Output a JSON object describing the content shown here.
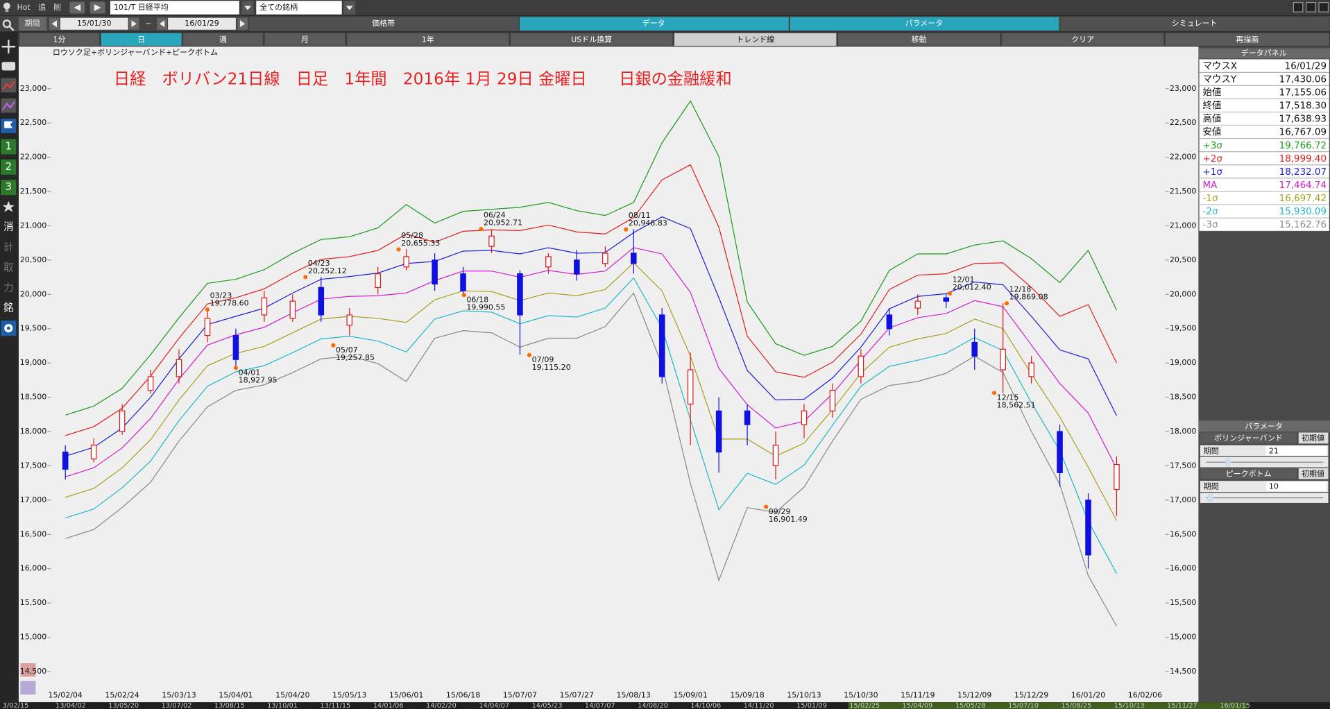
{
  "toolbar": {
    "hot": "Hot",
    "add": "追",
    "delete": "削",
    "symbol": "101/T 日経平均",
    "universe": "全ての銘柄",
    "period_label": "期間",
    "from": "15/01/30",
    "tilde": "~",
    "to": "16/01/29"
  },
  "tabs": [
    "価格帯",
    "データ",
    "パラメータ",
    "シミュレート"
  ],
  "buttons": [
    "1分",
    "日",
    "週",
    "月",
    "1年",
    "USドル換算",
    "トレンド線",
    "移動",
    "クリア",
    "再描画"
  ],
  "sidebar": [
    "1",
    "2",
    "3",
    "消",
    "計",
    "取",
    "力",
    "銘"
  ],
  "chart_data": {
    "type": "candlestick",
    "title": "日経　ボリバン21日線　日足　1年間　2016年 1月 29日 金曜日　　日銀の金融緩和",
    "subtitle": "ロウソク足+ボリンジャーバンド+ピークボトム",
    "categories": [
      "15/02/04",
      null,
      "15/02/24",
      null,
      "15/03/13",
      null,
      "15/04/01",
      null,
      "15/04/20",
      null,
      "15/05/13",
      null,
      "15/06/01",
      null,
      "15/06/18",
      null,
      "15/07/07",
      null,
      "15/07/27",
      null,
      "15/08/13",
      null,
      "15/09/01",
      null,
      "15/09/18",
      null,
      "15/10/13",
      null,
      "15/10/30",
      null,
      "15/11/19",
      null,
      "15/12/09",
      null,
      "15/12/29",
      null,
      "16/01/20",
      null,
      "16/02/06"
    ],
    "open": [
      17700,
      17600,
      18000,
      18600,
      18800,
      19400,
      19400,
      19700,
      19650,
      20100,
      19550,
      20100,
      20400,
      20500,
      20300,
      20700,
      20300,
      20400,
      20500,
      20450,
      20600,
      19700,
      18400,
      18300,
      18300,
      17500,
      18100,
      18300,
      18800,
      19700,
      19800,
      19950,
      19300,
      18900,
      18800,
      18000,
      17000,
      17155.06,
      null
    ],
    "high": [
      17800,
      17900,
      18400,
      18900,
      19200,
      19780,
      19500,
      20050,
      20000,
      20250,
      19800,
      20400,
      20660,
      20600,
      20400,
      20950,
      20350,
      20600,
      20650,
      20700,
      20950,
      19800,
      19150,
      18500,
      18400,
      18000,
      18400,
      18700,
      19200,
      19800,
      20000,
      20010,
      19500,
      19870,
      19100,
      18100,
      17100,
      17638.93,
      null
    ],
    "low": [
      17300,
      17550,
      17950,
      18550,
      18700,
      19300,
      18930,
      19600,
      19600,
      19600,
      19400,
      20000,
      20350,
      20050,
      19990,
      20600,
      19120,
      20300,
      20200,
      20400,
      20300,
      18700,
      17800,
      17400,
      17800,
      17300,
      17900,
      18200,
      18700,
      19400,
      19700,
      19800,
      18900,
      18560,
      18700,
      17200,
      16000,
      16767.09,
      null
    ],
    "close": [
      17450,
      17800,
      18300,
      18800,
      19050,
      19650,
      19050,
      19950,
      19900,
      19700,
      19700,
      20300,
      20550,
      20150,
      20050,
      20850,
      19700,
      20550,
      20300,
      20600,
      20450,
      18800,
      18900,
      17700,
      18100,
      17800,
      18300,
      18600,
      19100,
      19500,
      19900,
      19900,
      19100,
      19200,
      19000,
      17400,
      16200,
      17518.3,
      null
    ],
    "up_color": "#e01818",
    "down_color": "#1010e0",
    "series": [
      {
        "name": "+3σ",
        "color": "#1c9a1c",
        "values": [
          18240,
          18370,
          18630,
          19120,
          19660,
          20160,
          20220,
          20360,
          20600,
          20800,
          20840,
          20970,
          21310,
          21040,
          21210,
          21240,
          21270,
          21340,
          21220,
          21150,
          21340,
          22210,
          22820,
          22010,
          19890,
          19280,
          19110,
          19240,
          19610,
          20350,
          20590,
          20590,
          20720,
          20780,
          20520,
          20170,
          20640,
          19770,
          null
        ]
      },
      {
        "name": "+2σ",
        "color": "#e02020",
        "values": [
          17940,
          18070,
          18340,
          18810,
          19360,
          19860,
          19950,
          20080,
          20310,
          20510,
          20550,
          20640,
          20880,
          20760,
          20920,
          20940,
          20930,
          21010,
          20910,
          20880,
          21120,
          21670,
          21890,
          20980,
          19390,
          18870,
          18790,
          19010,
          19420,
          20070,
          20280,
          20300,
          20450,
          20460,
          20100,
          19680,
          19850,
          19000,
          null
        ]
      },
      {
        "name": "+1σ",
        "color": "#2020d0",
        "values": [
          17640,
          17770,
          18050,
          18500,
          19060,
          19560,
          19680,
          19800,
          20020,
          20220,
          20260,
          20310,
          20450,
          20480,
          20630,
          20640,
          20590,
          20680,
          20600,
          20610,
          20900,
          21130,
          20960,
          19950,
          18890,
          18460,
          18470,
          18780,
          19230,
          19790,
          19970,
          20010,
          20180,
          20140,
          19680,
          19190,
          19060,
          18230,
          null
        ]
      },
      {
        "name": "MA",
        "color": "#d020d0",
        "values": [
          17340,
          17470,
          17760,
          18190,
          18760,
          19260,
          19410,
          19520,
          19730,
          19930,
          19970,
          19980,
          20020,
          20200,
          20340,
          20340,
          20250,
          20350,
          20290,
          20340,
          20680,
          20590,
          20030,
          18920,
          18390,
          18050,
          18150,
          18550,
          19040,
          19510,
          19660,
          19720,
          19910,
          19820,
          19260,
          18700,
          18270,
          17460,
          null
        ]
      },
      {
        "name": "-1σ",
        "color": "#a8a020",
        "values": [
          17040,
          17170,
          17470,
          17880,
          18460,
          18960,
          19140,
          19240,
          19440,
          19640,
          19680,
          19650,
          19590,
          19920,
          20050,
          20040,
          19910,
          20020,
          19980,
          20070,
          20460,
          20050,
          19100,
          17890,
          17890,
          17640,
          17830,
          18320,
          18850,
          19230,
          19350,
          19430,
          19640,
          19500,
          18840,
          18210,
          17480,
          16700,
          null
        ]
      },
      {
        "name": "-2σ",
        "color": "#20b8c8",
        "values": [
          16740,
          16870,
          17180,
          17570,
          18160,
          18660,
          18870,
          18960,
          19150,
          19350,
          19390,
          19320,
          19160,
          19640,
          19760,
          19740,
          19570,
          19690,
          19670,
          19800,
          20240,
          19510,
          18170,
          16860,
          17390,
          17230,
          17510,
          18090,
          18660,
          18950,
          19040,
          19140,
          19370,
          19180,
          18420,
          17720,
          16690,
          15930,
          null
        ]
      },
      {
        "name": "-3σ",
        "color": "#888888",
        "values": [
          16440,
          16570,
          16890,
          17260,
          17860,
          18360,
          18600,
          18680,
          18860,
          19060,
          19100,
          18990,
          18730,
          19360,
          19470,
          19440,
          19230,
          19360,
          19360,
          19530,
          20020,
          18970,
          17240,
          15830,
          16890,
          16820,
          17190,
          17860,
          18470,
          18670,
          18730,
          18850,
          19100,
          18860,
          18000,
          17230,
          15900,
          15160,
          null
        ]
      }
    ],
    "ylim": [
      14250,
      23600
    ],
    "yticks": [
      {
        "value": 14500,
        "label": "14,500"
      },
      {
        "value": 15000,
        "label": "15,000"
      },
      {
        "value": 15500,
        "label": "15,500"
      },
      {
        "value": 16000,
        "label": "16,000"
      },
      {
        "value": 16500,
        "label": "16,500"
      },
      {
        "value": 17000,
        "label": "17,000"
      },
      {
        "value": 17500,
        "label": "17,500"
      },
      {
        "value": 18000,
        "label": "18,000"
      },
      {
        "value": 18500,
        "label": "18,500"
      },
      {
        "value": 19000,
        "label": "19,000"
      },
      {
        "value": 19500,
        "label": "19,500"
      },
      {
        "value": 20000,
        "label": "20,000"
      },
      {
        "value": 20500,
        "label": "20,500"
      },
      {
        "value": 21000,
        "label": "21,000"
      },
      {
        "value": 21500,
        "label": "21,500"
      },
      {
        "value": 22000,
        "label": "22,000"
      },
      {
        "value": 22500,
        "label": "22,500"
      },
      {
        "value": 23000,
        "label": "23,000"
      }
    ],
    "peaks": [
      {
        "date": "03/23",
        "value": 19778.6,
        "label": "19,778.60",
        "x": 5.0,
        "kind": "peak"
      },
      {
        "date": "04/01",
        "value": 18927.95,
        "label": "18,927.95",
        "x": 6.0,
        "kind": "bottom"
      },
      {
        "date": "04/23",
        "value": 20252.12,
        "label": "20,252.12",
        "x": 8.45,
        "kind": "peak"
      },
      {
        "date": "05/07",
        "value": 19257.85,
        "label": "19,257.85",
        "x": 9.43,
        "kind": "bottom"
      },
      {
        "date": "05/28",
        "value": 20655.33,
        "label": "20,655.33",
        "x": 11.73,
        "kind": "peak"
      },
      {
        "date": "06/18",
        "value": 19990.55,
        "label": "19,990.55",
        "x": 14.03,
        "kind": "bottom"
      },
      {
        "date": "06/24",
        "value": 20952.71,
        "label": "20,952.71",
        "x": 14.63,
        "kind": "peak"
      },
      {
        "date": "07/09",
        "value": 19115.2,
        "label": "19,115.20",
        "x": 16.33,
        "kind": "bottom"
      },
      {
        "date": "08/11",
        "value": 20946.83,
        "label": "20,946.83",
        "x": 19.73,
        "kind": "peak"
      },
      {
        "date": "09/29",
        "value": 16901.49,
        "label": "16,901.49",
        "x": 24.66,
        "kind": "bottom"
      },
      {
        "date": "12/01",
        "value": 20012.4,
        "label": "20,012.40",
        "x": 31.13,
        "kind": "peak"
      },
      {
        "date": "12/15",
        "value": 18562.51,
        "label": "18,562.51",
        "x": 32.69,
        "kind": "bottom"
      },
      {
        "date": "12/18",
        "value": 19869.08,
        "label": "19,869.08",
        "x": 33.13,
        "kind": "peak"
      }
    ],
    "peak_color": "#ff6a00"
  },
  "data_panel": {
    "title": "データパネル",
    "rows": [
      [
        "マウスX",
        "16/01/29"
      ],
      [
        "マウスY",
        "17,430.06"
      ],
      [
        "始値",
        "17,155.06"
      ],
      [
        "終値",
        "17,518.30"
      ],
      [
        "高値",
        "17,638.93"
      ],
      [
        "安値",
        "16,767.09"
      ]
    ],
    "band_values": [
      "19,766.72",
      "18,999.40",
      "18,232.07",
      "17,464.74",
      "16,697.42",
      "15,930.09",
      "15,162.76"
    ]
  },
  "parameters": {
    "title": "パラメータ",
    "groups": [
      {
        "name": "ボリンジャーバンド",
        "reset": "初期値",
        "field": "期間",
        "value": "21"
      },
      {
        "name": "ピークボトム",
        "reset": "初期値",
        "field": "期間",
        "value": "10"
      }
    ]
  },
  "scroller_dates": [
    "3/02/15",
    "13/04/02",
    "13/05/20",
    "13/07/02",
    "13/08/15",
    "13/10/01",
    "13/11/15",
    "14/01/06",
    "14/02/20",
    "14/04/07",
    "14/05/23",
    "14/07/07",
    "14/08/20",
    "14/10/06",
    "14/11/20",
    "15/01/09",
    "15/02/25",
    "15/04/09",
    "15/05/28",
    "15/07/10",
    "15/08/25",
    "15/10/13",
    "15/11/27",
    "16/01/15"
  ]
}
